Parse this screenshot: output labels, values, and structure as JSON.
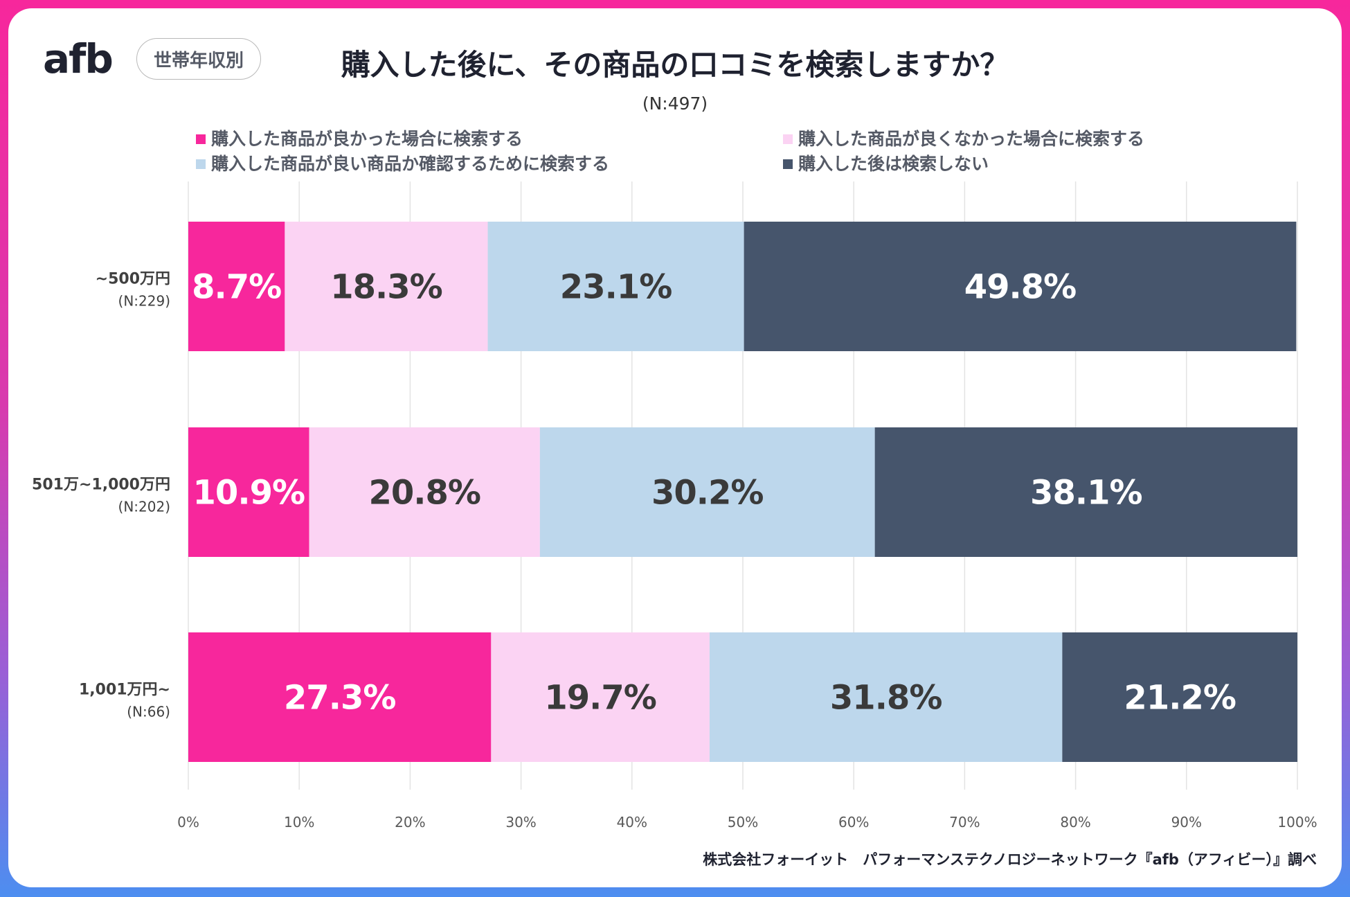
{
  "header": {
    "logo_text": "afb",
    "badge_label": "世帯年収別",
    "title": "購入した後に、その商品の口コミを検索しますか？",
    "subtitle": "(N:497)"
  },
  "credit": "株式会社フォーイット　パフォーマンステクノロジーネットワーク『afb（アフィビー）』調べ",
  "chart_data": {
    "type": "bar",
    "orientation": "horizontal-stacked-100",
    "title": "購入した後に、その商品の口コミを検索しますか？",
    "categories": [
      {
        "label": "~500万円",
        "n": "(N:229)"
      },
      {
        "label": "501万~1,000万円",
        "n": "(N:202)"
      },
      {
        "label": "1,001万円~",
        "n": "(N:66)"
      }
    ],
    "series": [
      {
        "name": "購入した商品が良かった場合に検索する",
        "color": "#f7279c",
        "label_color": "#ffffff",
        "values": [
          8.7,
          10.9,
          27.3
        ]
      },
      {
        "name": "購入した商品が良くなかった場合に検索する",
        "color": "#fbd3f3",
        "label_color": "#3a3a3a",
        "values": [
          18.3,
          20.8,
          19.7
        ]
      },
      {
        "name": "購入した商品が良い商品か確認するために検索する",
        "color": "#bdd7ec",
        "label_color": "#3a3a3a",
        "values": [
          23.1,
          30.2,
          31.8
        ]
      },
      {
        "name": "購入した後は検索しない",
        "color": "#46556c",
        "label_color": "#ffffff",
        "values": [
          49.8,
          38.1,
          21.2
        ]
      }
    ],
    "x_ticks": [
      "0%",
      "10%",
      "20%",
      "30%",
      "40%",
      "50%",
      "60%",
      "70%",
      "80%",
      "90%",
      "100%"
    ],
    "xlim": [
      0,
      100
    ],
    "grid": true,
    "legend_position": "top"
  }
}
